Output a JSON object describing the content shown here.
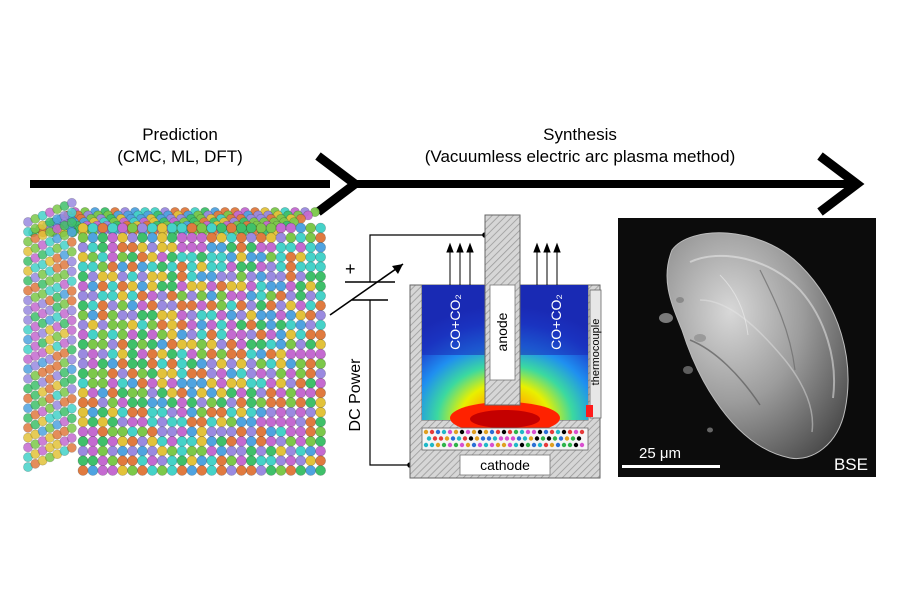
{
  "stages": {
    "prediction": {
      "title": "Prediction",
      "methods": "(CMC, ML, DFT)"
    },
    "synthesis": {
      "title": "Synthesis",
      "method": "(Vacuumless electric arc plasma method)"
    }
  },
  "reactor": {
    "power_label": "DC Power",
    "plus_sign": "+",
    "gas_label": "CO+CO₂",
    "anode_label": "anode",
    "cathode_label": "cathode",
    "thermocouple_label": "thermocouple"
  },
  "micrograph": {
    "scale_bar_label": "25 μm",
    "detector_label": "BSE"
  },
  "atom_colors": [
    "#c46ad0",
    "#3fc06a",
    "#4fa3e0",
    "#e2c23a",
    "#9a8ae0",
    "#e07a3f",
    "#45d2c8",
    "#7cc84a"
  ]
}
